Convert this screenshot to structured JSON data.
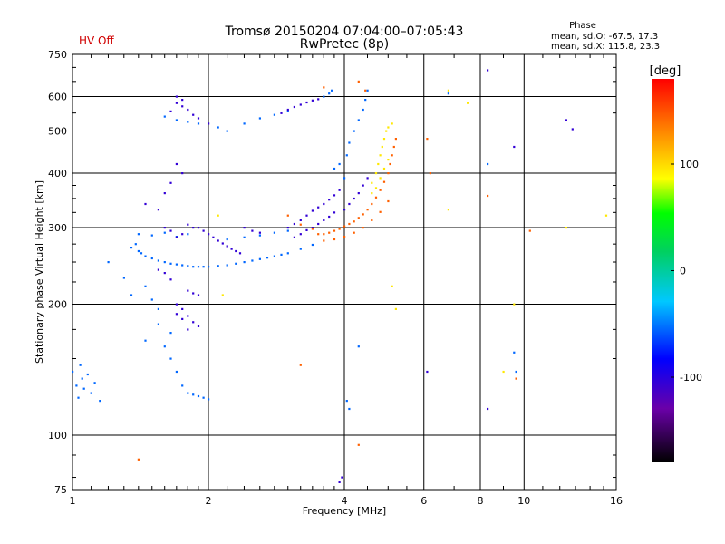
{
  "header": {
    "status_label": "HV Off",
    "title": "Tromsø 20150204 07:04:00–07:05:43",
    "subtitle": "RwPretec (8p)",
    "phase_title": "Phase",
    "phase_o": "mean, sd,O: -67.5, 17.3",
    "phase_x": "mean, sd,X: 115.8, 23.3"
  },
  "chart_data": {
    "type": "scatter",
    "xlabel": "Frequency [MHz]",
    "ylabel": "Stationary phase Virtual Height [km]",
    "xscale": "log",
    "yscale": "log",
    "xlim": [
      1,
      16
    ],
    "ylim": [
      75,
      750
    ],
    "grid": true,
    "x_ticks": [
      "1",
      "2",
      "4",
      "6",
      "8",
      "10",
      "16"
    ],
    "x_tick_values": [
      1,
      2,
      4,
      6,
      8,
      10,
      16
    ],
    "y_ticks": [
      "75",
      "100",
      "200",
      "300",
      "400",
      "500",
      "600",
      "750"
    ],
    "y_tick_values": [
      75,
      100,
      200,
      300,
      400,
      500,
      600,
      750
    ],
    "colorbar": {
      "label": "[deg]",
      "range": [
        -180,
        180
      ],
      "ticks": [
        "100",
        "0",
        "-100"
      ],
      "tick_values": [
        100,
        0,
        -100
      ]
    },
    "series": [
      {
        "color_value": -55,
        "points": [
          [
            1.0,
            140
          ],
          [
            1.02,
            130
          ],
          [
            1.03,
            122
          ],
          [
            1.05,
            135
          ],
          [
            1.06,
            128
          ],
          [
            1.08,
            138
          ],
          [
            1.1,
            125
          ],
          [
            1.12,
            132
          ],
          [
            1.04,
            145
          ],
          [
            1.15,
            120
          ],
          [
            1.35,
            270
          ],
          [
            1.38,
            275
          ],
          [
            1.4,
            265
          ],
          [
            1.42,
            262
          ],
          [
            1.45,
            258
          ],
          [
            1.5,
            255
          ],
          [
            1.55,
            252
          ],
          [
            1.6,
            250
          ],
          [
            1.65,
            248
          ],
          [
            1.7,
            247
          ],
          [
            1.75,
            246
          ],
          [
            1.8,
            245
          ],
          [
            1.85,
            244
          ],
          [
            1.9,
            244
          ],
          [
            1.95,
            244
          ],
          [
            2.0,
            244
          ],
          [
            2.1,
            245
          ],
          [
            2.2,
            246
          ],
          [
            2.3,
            248
          ],
          [
            2.4,
            250
          ],
          [
            2.5,
            252
          ],
          [
            2.6,
            254
          ],
          [
            2.7,
            256
          ],
          [
            2.8,
            258
          ],
          [
            2.9,
            260
          ],
          [
            3.0,
            262
          ],
          [
            3.2,
            268
          ],
          [
            3.4,
            274
          ],
          [
            1.4,
            290
          ],
          [
            1.5,
            288
          ],
          [
            1.6,
            292
          ],
          [
            1.7,
            286
          ],
          [
            1.8,
            290
          ],
          [
            2.2,
            282
          ],
          [
            2.4,
            285
          ],
          [
            2.6,
            288
          ],
          [
            2.8,
            292
          ],
          [
            3.0,
            295
          ],
          [
            1.2,
            250
          ],
          [
            1.3,
            230
          ],
          [
            1.35,
            210
          ],
          [
            1.45,
            220
          ],
          [
            1.5,
            205
          ],
          [
            1.55,
            195
          ],
          [
            1.6,
            160
          ],
          [
            1.65,
            150
          ],
          [
            1.7,
            140
          ],
          [
            1.75,
            130
          ],
          [
            1.8,
            125
          ],
          [
            1.85,
            124
          ],
          [
            1.9,
            123
          ],
          [
            1.95,
            122
          ],
          [
            2.0,
            121
          ],
          [
            1.65,
            172
          ],
          [
            1.55,
            180
          ],
          [
            1.45,
            165
          ],
          [
            1.6,
            540
          ],
          [
            1.7,
            530
          ],
          [
            1.8,
            525
          ],
          [
            1.9,
            520
          ],
          [
            2.1,
            510
          ],
          [
            2.2,
            500
          ],
          [
            2.4,
            520
          ],
          [
            2.6,
            535
          ],
          [
            2.8,
            545
          ],
          [
            3.0,
            555
          ],
          [
            3.8,
            410
          ],
          [
            3.9,
            420
          ],
          [
            4.0,
            390
          ],
          [
            4.05,
            440
          ],
          [
            4.1,
            470
          ],
          [
            4.2,
            500
          ],
          [
            4.3,
            530
          ],
          [
            4.4,
            560
          ],
          [
            4.45,
            590
          ],
          [
            4.5,
            620
          ],
          [
            3.6,
            600
          ],
          [
            3.7,
            610
          ],
          [
            3.75,
            620
          ],
          [
            4.3,
            160
          ],
          [
            4.1,
            115
          ],
          [
            4.05,
            120
          ],
          [
            6.8,
            610
          ],
          [
            9.6,
            140
          ],
          [
            9.5,
            155
          ],
          [
            8.3,
            420
          ]
        ]
      },
      {
        "color_value": -105,
        "points": [
          [
            1.9,
            300
          ],
          [
            1.95,
            295
          ],
          [
            2.0,
            290
          ],
          [
            2.05,
            285
          ],
          [
            2.1,
            280
          ],
          [
            2.15,
            276
          ],
          [
            2.2,
            272
          ],
          [
            2.25,
            268
          ],
          [
            2.3,
            265
          ],
          [
            2.35,
            262
          ],
          [
            1.8,
            305
          ],
          [
            1.85,
            300
          ],
          [
            1.75,
            290
          ],
          [
            1.7,
            285
          ],
          [
            1.65,
            295
          ],
          [
            1.6,
            300
          ],
          [
            2.4,
            300
          ],
          [
            2.5,
            295
          ],
          [
            2.6,
            292
          ],
          [
            3.0,
            300
          ],
          [
            3.1,
            306
          ],
          [
            3.2,
            312
          ],
          [
            3.3,
            320
          ],
          [
            3.4,
            328
          ],
          [
            3.5,
            334
          ],
          [
            3.6,
            340
          ],
          [
            3.7,
            348
          ],
          [
            3.8,
            356
          ],
          [
            3.9,
            366
          ],
          [
            3.1,
            285
          ],
          [
            3.2,
            290
          ],
          [
            3.3,
            296
          ],
          [
            3.4,
            300
          ],
          [
            3.5,
            306
          ],
          [
            3.6,
            312
          ],
          [
            3.7,
            318
          ],
          [
            3.8,
            325
          ],
          [
            1.7,
            190
          ],
          [
            1.75,
            185
          ],
          [
            1.8,
            188
          ],
          [
            1.85,
            182
          ],
          [
            1.9,
            178
          ],
          [
            1.8,
            175
          ],
          [
            1.75,
            195
          ],
          [
            1.7,
            200
          ],
          [
            1.85,
            212
          ],
          [
            1.9,
            210
          ],
          [
            1.8,
            215
          ],
          [
            1.65,
            228
          ],
          [
            1.6,
            236
          ],
          [
            1.55,
            240
          ],
          [
            1.7,
            580
          ],
          [
            1.75,
            570
          ],
          [
            1.8,
            560
          ],
          [
            1.65,
            555
          ],
          [
            1.85,
            545
          ],
          [
            1.9,
            535
          ],
          [
            2.0,
            520
          ],
          [
            1.75,
            590
          ],
          [
            1.7,
            600
          ],
          [
            3.0,
            560
          ],
          [
            3.1,
            568
          ],
          [
            3.2,
            575
          ],
          [
            3.3,
            582
          ],
          [
            3.4,
            588
          ],
          [
            3.5,
            592
          ],
          [
            2.9,
            550
          ],
          [
            1.7,
            420
          ],
          [
            1.75,
            400
          ],
          [
            1.65,
            380
          ],
          [
            1.6,
            360
          ],
          [
            1.45,
            340
          ],
          [
            1.55,
            330
          ],
          [
            4.0,
            330
          ],
          [
            4.1,
            340
          ],
          [
            4.2,
            350
          ],
          [
            4.3,
            360
          ],
          [
            4.4,
            375
          ],
          [
            4.5,
            390
          ],
          [
            3.9,
            78
          ],
          [
            3.95,
            80
          ],
          [
            8.3,
            115
          ],
          [
            9.5,
            460
          ],
          [
            8.3,
            690
          ],
          [
            12.4,
            530
          ],
          [
            12.8,
            505
          ],
          [
            6.1,
            140
          ]
        ]
      },
      {
        "color_value": 145,
        "points": [
          [
            3.5,
            290
          ],
          [
            3.6,
            290
          ],
          [
            3.7,
            292
          ],
          [
            3.8,
            295
          ],
          [
            3.9,
            298
          ],
          [
            4.0,
            302
          ],
          [
            4.1,
            306
          ],
          [
            4.2,
            310
          ],
          [
            4.3,
            316
          ],
          [
            4.4,
            322
          ],
          [
            4.5,
            330
          ],
          [
            4.6,
            340
          ],
          [
            4.7,
            352
          ],
          [
            4.8,
            366
          ],
          [
            4.9,
            382
          ],
          [
            5.0,
            400
          ],
          [
            5.05,
            420
          ],
          [
            5.1,
            440
          ],
          [
            5.15,
            460
          ],
          [
            5.2,
            480
          ],
          [
            3.6,
            280
          ],
          [
            3.8,
            282
          ],
          [
            4.0,
            286
          ],
          [
            4.2,
            292
          ],
          [
            4.4,
            300
          ],
          [
            4.6,
            312
          ],
          [
            4.8,
            326
          ],
          [
            5.0,
            345
          ],
          [
            3.0,
            320
          ],
          [
            3.2,
            305
          ],
          [
            3.4,
            298
          ],
          [
            4.3,
            650
          ],
          [
            4.45,
            620
          ],
          [
            3.6,
            630
          ],
          [
            3.2,
            145
          ],
          [
            6.2,
            400
          ],
          [
            8.3,
            355
          ],
          [
            9.6,
            135
          ],
          [
            1.4,
            88
          ],
          [
            4.3,
            95
          ],
          [
            6.1,
            480
          ],
          [
            10.3,
            295
          ]
        ]
      },
      {
        "color_value": 95,
        "points": [
          [
            4.6,
            380
          ],
          [
            4.7,
            400
          ],
          [
            4.75,
            420
          ],
          [
            4.8,
            440
          ],
          [
            4.85,
            460
          ],
          [
            4.9,
            480
          ],
          [
            4.95,
            500
          ],
          [
            5.0,
            510
          ],
          [
            5.1,
            520
          ],
          [
            4.6,
            360
          ],
          [
            4.7,
            370
          ],
          [
            4.8,
            390
          ],
          [
            4.9,
            410
          ],
          [
            5.0,
            430
          ],
          [
            2.1,
            320
          ],
          [
            2.15,
            210
          ],
          [
            5.2,
            195
          ],
          [
            6.8,
            330
          ],
          [
            6.8,
            620
          ],
          [
            7.5,
            580
          ],
          [
            9.5,
            200
          ],
          [
            9.0,
            140
          ],
          [
            15.2,
            320
          ],
          [
            12.4,
            300
          ],
          [
            5.1,
            220
          ]
        ]
      }
    ]
  }
}
